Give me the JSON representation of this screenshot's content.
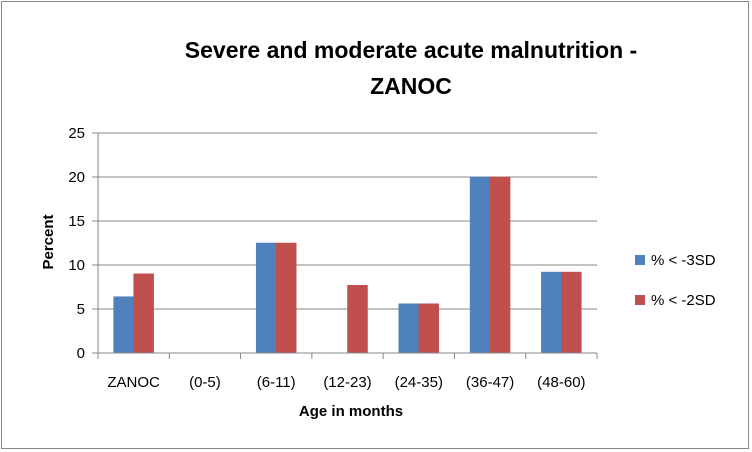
{
  "chart_data": {
    "type": "bar",
    "title_lines": [
      "Severe and moderate acute malnutrition -",
      "ZANOC"
    ],
    "xlabel": "Age in months",
    "ylabel": "Percent",
    "categories": [
      "ZANOC",
      "(0-5)",
      "(6-11)",
      "(12-23)",
      "(24-35)",
      "(36-47)",
      "(48-60)"
    ],
    "series": [
      {
        "name": "% < -3SD",
        "values": [
          6.4,
          0,
          12.5,
          0,
          5.6,
          20,
          9.2
        ],
        "color": "#4F81BD"
      },
      {
        "name": "% < -2SD",
        "values": [
          9.0,
          0,
          12.5,
          7.7,
          5.6,
          20,
          9.2
        ],
        "color": "#C0504D"
      }
    ],
    "ylim": [
      0,
      25
    ],
    "yticks": [
      0,
      5,
      10,
      15,
      20,
      25
    ],
    "grid": true,
    "legend": "right"
  }
}
